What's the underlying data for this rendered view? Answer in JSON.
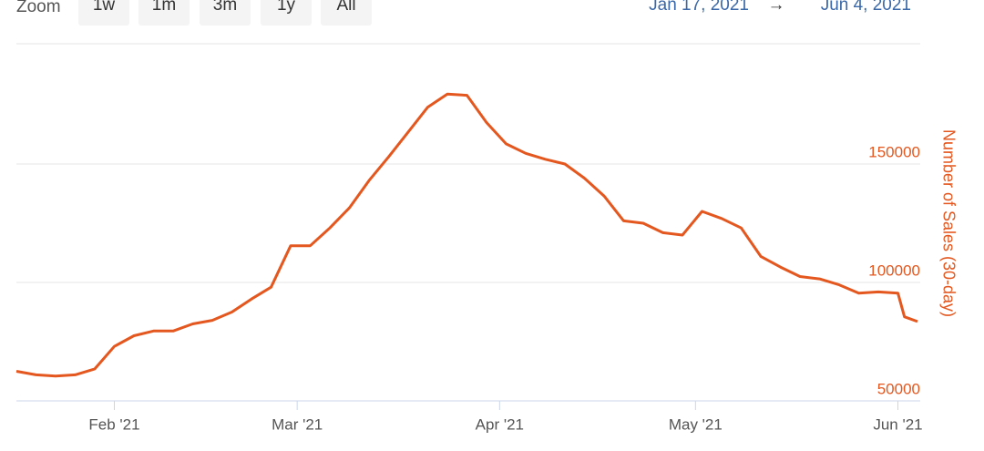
{
  "zoom_label": "Zoom",
  "zoom_buttons": [
    "1w",
    "1m",
    "3m",
    "1y",
    "All"
  ],
  "range_from": "Jan 17, 2021",
  "range_arrow": "→",
  "range_to": "Jun 4, 2021",
  "chart_data": {
    "type": "line",
    "y_label": "Number of Sales (30-day)",
    "x": [
      "2021-01-17",
      "2021-01-20",
      "2021-01-23",
      "2021-01-26",
      "2021-01-29",
      "2021-02-01",
      "2021-02-04",
      "2021-02-07",
      "2021-02-10",
      "2021-02-13",
      "2021-02-16",
      "2021-02-19",
      "2021-02-22",
      "2021-02-25",
      "2021-02-28",
      "2021-03-03",
      "2021-03-06",
      "2021-03-09",
      "2021-03-12",
      "2021-03-15",
      "2021-03-18",
      "2021-03-21",
      "2021-03-24",
      "2021-03-27",
      "2021-03-30",
      "2021-04-02",
      "2021-04-05",
      "2021-04-08",
      "2021-04-11",
      "2021-04-14",
      "2021-04-17",
      "2021-04-20",
      "2021-04-23",
      "2021-04-26",
      "2021-04-29",
      "2021-05-02",
      "2021-05-05",
      "2021-05-08",
      "2021-05-11",
      "2021-05-14",
      "2021-05-17",
      "2021-05-20",
      "2021-05-23",
      "2021-05-26",
      "2021-05-29",
      "2021-06-01",
      "2021-06-02",
      "2021-06-04"
    ],
    "series": [
      {
        "name": "Number of Sales (30-day)",
        "color": "#e4571f",
        "values": [
          62500,
          61000,
          60500,
          61000,
          63500,
          73000,
          77500,
          79500,
          79500,
          82500,
          84000,
          87500,
          93000,
          98000,
          115500,
          115500,
          123000,
          131500,
          143000,
          153000,
          163500,
          174000,
          179500,
          179000,
          167500,
          158500,
          154500,
          152000,
          150000,
          144000,
          136500,
          126000,
          125000,
          121000,
          120000,
          130000,
          127000,
          123000,
          111000,
          106500,
          102500,
          101500,
          99000,
          95500,
          96000,
          95500,
          85500,
          83500
        ]
      }
    ],
    "xlim": [
      "2021-01-17",
      "2021-06-04"
    ],
    "xticks": [
      {
        "value": "2021-02-01",
        "label": "Feb '21"
      },
      {
        "value": "2021-03-01",
        "label": "Mar '21"
      },
      {
        "value": "2021-04-01",
        "label": "Apr '21"
      },
      {
        "value": "2021-05-01",
        "label": "May '21"
      },
      {
        "value": "2021-06-01",
        "label": "Jun '21"
      }
    ],
    "ylim": [
      50000,
      200000
    ],
    "yticks": [
      50000,
      100000,
      150000
    ],
    "grid": true
  }
}
